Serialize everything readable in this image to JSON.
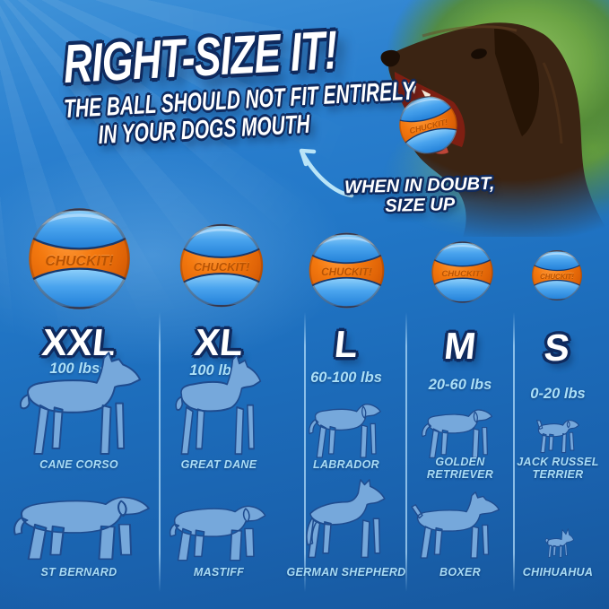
{
  "header": {
    "title": "RIGHT-SIZE IT!",
    "subtitle_line1": "THE BALL SHOULD NOT FIT ENTIRELY",
    "subtitle_line2": "IN YOUR DOGS MOUTH",
    "hint_line1": "WHEN IN DOUBT,",
    "hint_line2": "SIZE UP"
  },
  "ball": {
    "logo": "CHUCKIT!",
    "colors": {
      "orange": "#f1730e",
      "orange_dark": "#c85203",
      "stripe_blue": "#3e9be8",
      "seam_navy": "#16386e"
    }
  },
  "photo": {
    "icon": "dog-with-ball-photo",
    "description_icon": "chocolate-labrador-head-icon"
  },
  "arrow": {
    "icon": "curved-arrow-up-left-icon",
    "color": "#b9e4f7"
  },
  "columns": [
    {
      "size": "XXL",
      "weight": "100 lbs+",
      "dogs": [
        {
          "breed": "CANE CORSO",
          "icon": "cane-corso-silhouette"
        },
        {
          "breed": "ST BERNARD",
          "icon": "st-bernard-silhouette"
        }
      ]
    },
    {
      "size": "XL",
      "weight": "100 lbs+",
      "dogs": [
        {
          "breed": "GREAT DANE",
          "icon": "great-dane-silhouette"
        },
        {
          "breed": "MASTIFF",
          "icon": "mastiff-silhouette"
        }
      ]
    },
    {
      "size": "L",
      "weight": "60-100 lbs",
      "dogs": [
        {
          "breed": "LABRADOR",
          "icon": "labrador-silhouette"
        },
        {
          "breed": "GERMAN SHEPHERD",
          "icon": "german-shepherd-silhouette"
        }
      ]
    },
    {
      "size": "M",
      "weight": "20-60 lbs",
      "dogs": [
        {
          "breed": "GOLDEN RETRIEVER",
          "icon": "golden-retriever-silhouette"
        },
        {
          "breed": "BOXER",
          "icon": "boxer-silhouette"
        }
      ]
    },
    {
      "size": "S",
      "weight": "0-20 lbs",
      "dogs": [
        {
          "breed": "JACK RUSSEL TERRIER",
          "icon": "jack-russel-terrier-silhouette"
        },
        {
          "breed": "CHIHUAHUA",
          "icon": "chihuahua-silhouette"
        }
      ]
    }
  ],
  "theme": {
    "background_blue_top": "#3f92d8",
    "background_blue_bottom": "#16579d",
    "text_outline_navy": "#0f2a5e",
    "silhouette_blue": "#76a8db",
    "silhouette_outline": "#1f4c8f",
    "label_cyan": "#a9dcf5",
    "divider": "#afdaf8"
  }
}
